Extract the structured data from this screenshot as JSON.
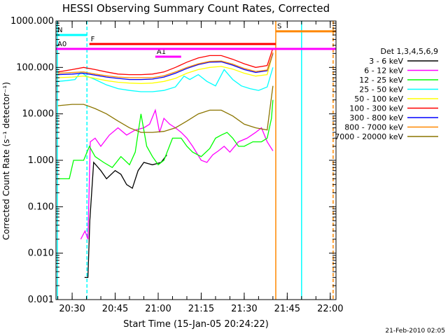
{
  "chart_data": {
    "type": "line",
    "title": "HESSI Observing Summary Count Rates, Corrected",
    "xlabel": "Start Time (15-Jan-05 20:24:22)",
    "ylabel": "Corrected Count Rate (s⁻¹ detector⁻¹)",
    "yscale": "log",
    "ylim": [
      0.001,
      1000
    ],
    "xlim": [
      "20:24:22",
      "22:02:00"
    ],
    "grid": false,
    "legend_position": "right",
    "legend_title": "Det 1,3,4,5,6,9",
    "x_ticks": [
      "20:30",
      "20:45",
      "21:00",
      "21:15",
      "21:30",
      "21:45",
      "22:00"
    ],
    "y_ticks": [
      "0.001",
      "0.010",
      "0.100",
      "1.000",
      "10.000",
      "100.000",
      "1000.000"
    ],
    "footer_date": "21-Feb-2010 02:05",
    "series": [
      {
        "name": "3 - 6 keV",
        "color": "#000000",
        "points": [
          [
            "20:34:20",
            0.003
          ],
          [
            "20:35:30",
            0.003
          ],
          [
            "20:36:10",
            0.05
          ],
          [
            "20:37:30",
            0.9
          ],
          [
            "20:40:00",
            0.6
          ],
          [
            "20:42:00",
            0.4
          ],
          [
            "20:45:00",
            0.6
          ],
          [
            "20:47:00",
            0.5
          ],
          [
            "20:49:00",
            0.3
          ],
          [
            "20:51:00",
            0.25
          ],
          [
            "20:53:00",
            0.6
          ],
          [
            "20:55:00",
            0.9
          ],
          [
            "20:58:00",
            0.8
          ],
          [
            "21:01:00",
            0.9
          ],
          [
            "21:03:00",
            1.3
          ]
        ]
      },
      {
        "name": "6 - 12 keV",
        "color": "#ff00ff",
        "points": [
          [
            "20:33:00",
            0.02
          ],
          [
            "20:34:30",
            0.03
          ],
          [
            "20:35:30",
            0.02
          ],
          [
            "20:36:20",
            2.5
          ],
          [
            "20:38:00",
            3
          ],
          [
            "20:40:00",
            2
          ],
          [
            "20:43:00",
            3.5
          ],
          [
            "20:46:00",
            5
          ],
          [
            "20:49:00",
            3.5
          ],
          [
            "20:52:00",
            4.5
          ],
          [
            "20:55:00",
            5
          ],
          [
            "20:57:00",
            6
          ],
          [
            "20:59:00",
            12
          ],
          [
            "21:00:30",
            4
          ],
          [
            "21:02:00",
            8
          ],
          [
            "21:04:00",
            6
          ],
          [
            "21:06:00",
            5
          ],
          [
            "21:08:00",
            4
          ],
          [
            "21:10:00",
            3
          ],
          [
            "21:12:00",
            2
          ],
          [
            "21:15:00",
            1
          ],
          [
            "21:17:00",
            0.9
          ],
          [
            "21:19:00",
            1.3
          ],
          [
            "21:21:00",
            1.6
          ],
          [
            "21:23:00",
            2
          ],
          [
            "21:25:00",
            1.5
          ],
          [
            "21:28:00",
            2.5
          ],
          [
            "21:31:00",
            3
          ],
          [
            "21:34:00",
            4
          ],
          [
            "21:36:00",
            5
          ],
          [
            "21:38:00",
            2.5
          ],
          [
            "21:40:00",
            1.6
          ]
        ]
      },
      {
        "name": "12 - 25 keV",
        "color": "#00ff00",
        "points": [
          [
            "20:25:00",
            0.4
          ],
          [
            "20:29:00",
            0.4
          ],
          [
            "20:30:30",
            1
          ],
          [
            "20:34:00",
            1
          ],
          [
            "20:36:00",
            2
          ],
          [
            "20:38:00",
            1.2
          ],
          [
            "20:41:00",
            0.9
          ],
          [
            "20:44:00",
            0.7
          ],
          [
            "20:47:00",
            1.2
          ],
          [
            "20:50:00",
            0.8
          ],
          [
            "20:52:00",
            1.5
          ],
          [
            "20:54:00",
            10
          ],
          [
            "20:56:00",
            2
          ],
          [
            "20:58:00",
            1.2
          ],
          [
            "21:00:00",
            0.8
          ],
          [
            "21:02:00",
            1
          ],
          [
            "21:05:00",
            3
          ],
          [
            "21:08:00",
            3
          ],
          [
            "21:10:00",
            2
          ],
          [
            "21:12:00",
            1.5
          ],
          [
            "21:15:00",
            1.2
          ],
          [
            "21:18:00",
            1.8
          ],
          [
            "21:20:00",
            3
          ],
          [
            "21:22:00",
            3.5
          ],
          [
            "21:24:00",
            4
          ],
          [
            "21:26:00",
            3
          ],
          [
            "21:28:00",
            2
          ],
          [
            "21:30:00",
            2
          ],
          [
            "21:33:00",
            2.5
          ],
          [
            "21:36:00",
            2.5
          ],
          [
            "21:38:00",
            3
          ],
          [
            "21:39:30",
            8
          ],
          [
            "21:40:00",
            20
          ]
        ]
      },
      {
        "name": "25 - 50 keV",
        "color": "#00ffff",
        "points": [
          [
            "20:25:00",
            50
          ],
          [
            "20:28:00",
            52
          ],
          [
            "20:31:00",
            55
          ],
          [
            "20:33:00",
            80
          ],
          [
            "20:35:00",
            65
          ],
          [
            "20:38:00",
            55
          ],
          [
            "20:42:00",
            42
          ],
          [
            "20:46:00",
            35
          ],
          [
            "20:50:00",
            32
          ],
          [
            "20:54:00",
            30
          ],
          [
            "20:58:00",
            30
          ],
          [
            "21:02:00",
            32
          ],
          [
            "21:06:00",
            38
          ],
          [
            "21:09:00",
            65
          ],
          [
            "21:11:00",
            55
          ],
          [
            "21:14:00",
            70
          ],
          [
            "21:17:00",
            50
          ],
          [
            "21:20:00",
            40
          ],
          [
            "21:23:00",
            90
          ],
          [
            "21:26:00",
            55
          ],
          [
            "21:29:00",
            40
          ],
          [
            "21:32:00",
            35
          ],
          [
            "21:35:00",
            32
          ],
          [
            "21:38:00",
            38
          ],
          [
            "21:40:00",
            100
          ]
        ]
      },
      {
        "name": "50 - 100 keV",
        "color": "#ffff00",
        "points": [
          [
            "20:25:00",
            60
          ],
          [
            "20:30:00",
            62
          ],
          [
            "20:34:00",
            65
          ],
          [
            "20:38:00",
            58
          ],
          [
            "20:42:00",
            52
          ],
          [
            "20:46:00",
            48
          ],
          [
            "20:50:00",
            46
          ],
          [
            "20:54:00",
            45
          ],
          [
            "20:58:00",
            46
          ],
          [
            "21:02:00",
            50
          ],
          [
            "21:06:00",
            58
          ],
          [
            "21:10:00",
            75
          ],
          [
            "21:14:00",
            90
          ],
          [
            "21:18:00",
            100
          ],
          [
            "21:22:00",
            105
          ],
          [
            "21:26:00",
            92
          ],
          [
            "21:30:00",
            75
          ],
          [
            "21:34:00",
            65
          ],
          [
            "21:38:00",
            70
          ],
          [
            "21:40:00",
            200
          ]
        ]
      },
      {
        "name": "100 - 300 keV",
        "color": "#ff0000",
        "points": [
          [
            "20:25:00",
            80
          ],
          [
            "20:30:00",
            90
          ],
          [
            "20:34:00",
            100
          ],
          [
            "20:38:00",
            90
          ],
          [
            "20:42:00",
            80
          ],
          [
            "20:46:00",
            72
          ],
          [
            "20:50:00",
            70
          ],
          [
            "20:54:00",
            70
          ],
          [
            "20:58:00",
            72
          ],
          [
            "21:02:00",
            80
          ],
          [
            "21:06:00",
            100
          ],
          [
            "21:10:00",
            130
          ],
          [
            "21:14:00",
            160
          ],
          [
            "21:18:00",
            180
          ],
          [
            "21:22:00",
            180
          ],
          [
            "21:26:00",
            150
          ],
          [
            "21:30:00",
            120
          ],
          [
            "21:34:00",
            100
          ],
          [
            "21:38:00",
            110
          ],
          [
            "21:40:00",
            260
          ]
        ]
      },
      {
        "name": "300 - 800 keV",
        "color": "#0000ff",
        "points": [
          [
            "20:25:00",
            70
          ],
          [
            "20:30:00",
            72
          ],
          [
            "20:34:00",
            75
          ],
          [
            "20:38:00",
            68
          ],
          [
            "20:42:00",
            62
          ],
          [
            "20:46:00",
            58
          ],
          [
            "20:50:00",
            55
          ],
          [
            "20:54:00",
            55
          ],
          [
            "20:58:00",
            56
          ],
          [
            "21:02:00",
            62
          ],
          [
            "21:06:00",
            75
          ],
          [
            "21:10:00",
            95
          ],
          [
            "21:14:00",
            115
          ],
          [
            "21:18:00",
            130
          ],
          [
            "21:22:00",
            132
          ],
          [
            "21:26:00",
            112
          ],
          [
            "21:30:00",
            90
          ],
          [
            "21:34:00",
            78
          ],
          [
            "21:38:00",
            85
          ],
          [
            "21:40:00",
            200
          ]
        ]
      },
      {
        "name": "800 - 7000 keV",
        "color": "#ff8800",
        "points": [
          [
            "20:25:00",
            75
          ],
          [
            "20:30:00",
            78
          ],
          [
            "20:34:00",
            80
          ],
          [
            "20:38:00",
            72
          ],
          [
            "20:42:00",
            66
          ],
          [
            "20:46:00",
            62
          ],
          [
            "20:50:00",
            60
          ],
          [
            "20:54:00",
            60
          ],
          [
            "20:58:00",
            60
          ],
          [
            "21:02:00",
            66
          ],
          [
            "21:06:00",
            80
          ],
          [
            "21:10:00",
            100
          ],
          [
            "21:14:00",
            120
          ],
          [
            "21:18:00",
            135
          ],
          [
            "21:22:00",
            138
          ],
          [
            "21:26:00",
            118
          ],
          [
            "21:30:00",
            95
          ],
          [
            "21:34:00",
            82
          ],
          [
            "21:38:00",
            88
          ],
          [
            "21:40:00",
            210
          ]
        ]
      },
      {
        "name": "7000 - 20000 keV",
        "color": "#8b7500",
        "points": [
          [
            "20:25:00",
            15
          ],
          [
            "20:30:00",
            16
          ],
          [
            "20:34:00",
            16
          ],
          [
            "20:38:00",
            13
          ],
          [
            "20:42:00",
            10
          ],
          [
            "20:46:00",
            7
          ],
          [
            "20:50:00",
            5
          ],
          [
            "20:54:00",
            4
          ],
          [
            "20:58:00",
            4
          ],
          [
            "21:02:00",
            4.2
          ],
          [
            "21:06:00",
            5
          ],
          [
            "21:10:00",
            7
          ],
          [
            "21:14:00",
            10
          ],
          [
            "21:18:00",
            12
          ],
          [
            "21:22:00",
            12
          ],
          [
            "21:26:00",
            9
          ],
          [
            "21:30:00",
            6
          ],
          [
            "21:34:00",
            5
          ],
          [
            "21:38:00",
            4.5
          ],
          [
            "21:40:00",
            40
          ]
        ]
      }
    ],
    "annotations": [
      {
        "label": "N",
        "color": "#00ffff",
        "start": "20:24:22",
        "end": "20:35:10",
        "y": 500
      },
      {
        "label": "F",
        "color": "#ff0000",
        "start": "20:36:00",
        "end": "21:41:00",
        "y": 320
      },
      {
        "label": "A1",
        "color": "#ff00ff",
        "start": "20:59:00",
        "end": "21:08:00",
        "y": 170
      },
      {
        "label": "A0",
        "color": "#ff00ff",
        "start": "20:24:22",
        "end": "22:02:00",
        "y": 250
      },
      {
        "label": "S",
        "color": "#ff8800",
        "start": "21:41:00",
        "end": "22:02:00",
        "y": 600
      }
    ],
    "vertical_markers": [
      {
        "time": "20:24:50",
        "color": "#00ffff",
        "style": "solid"
      },
      {
        "time": "20:35:10",
        "color": "#00ffff",
        "style": "dashed"
      },
      {
        "time": "21:41:00",
        "color": "#ff8800",
        "style": "solid"
      },
      {
        "time": "21:50:00",
        "color": "#00ffff",
        "style": "solid"
      },
      {
        "time": "22:01:00",
        "color": "#ff8800",
        "style": "dashed"
      }
    ]
  }
}
